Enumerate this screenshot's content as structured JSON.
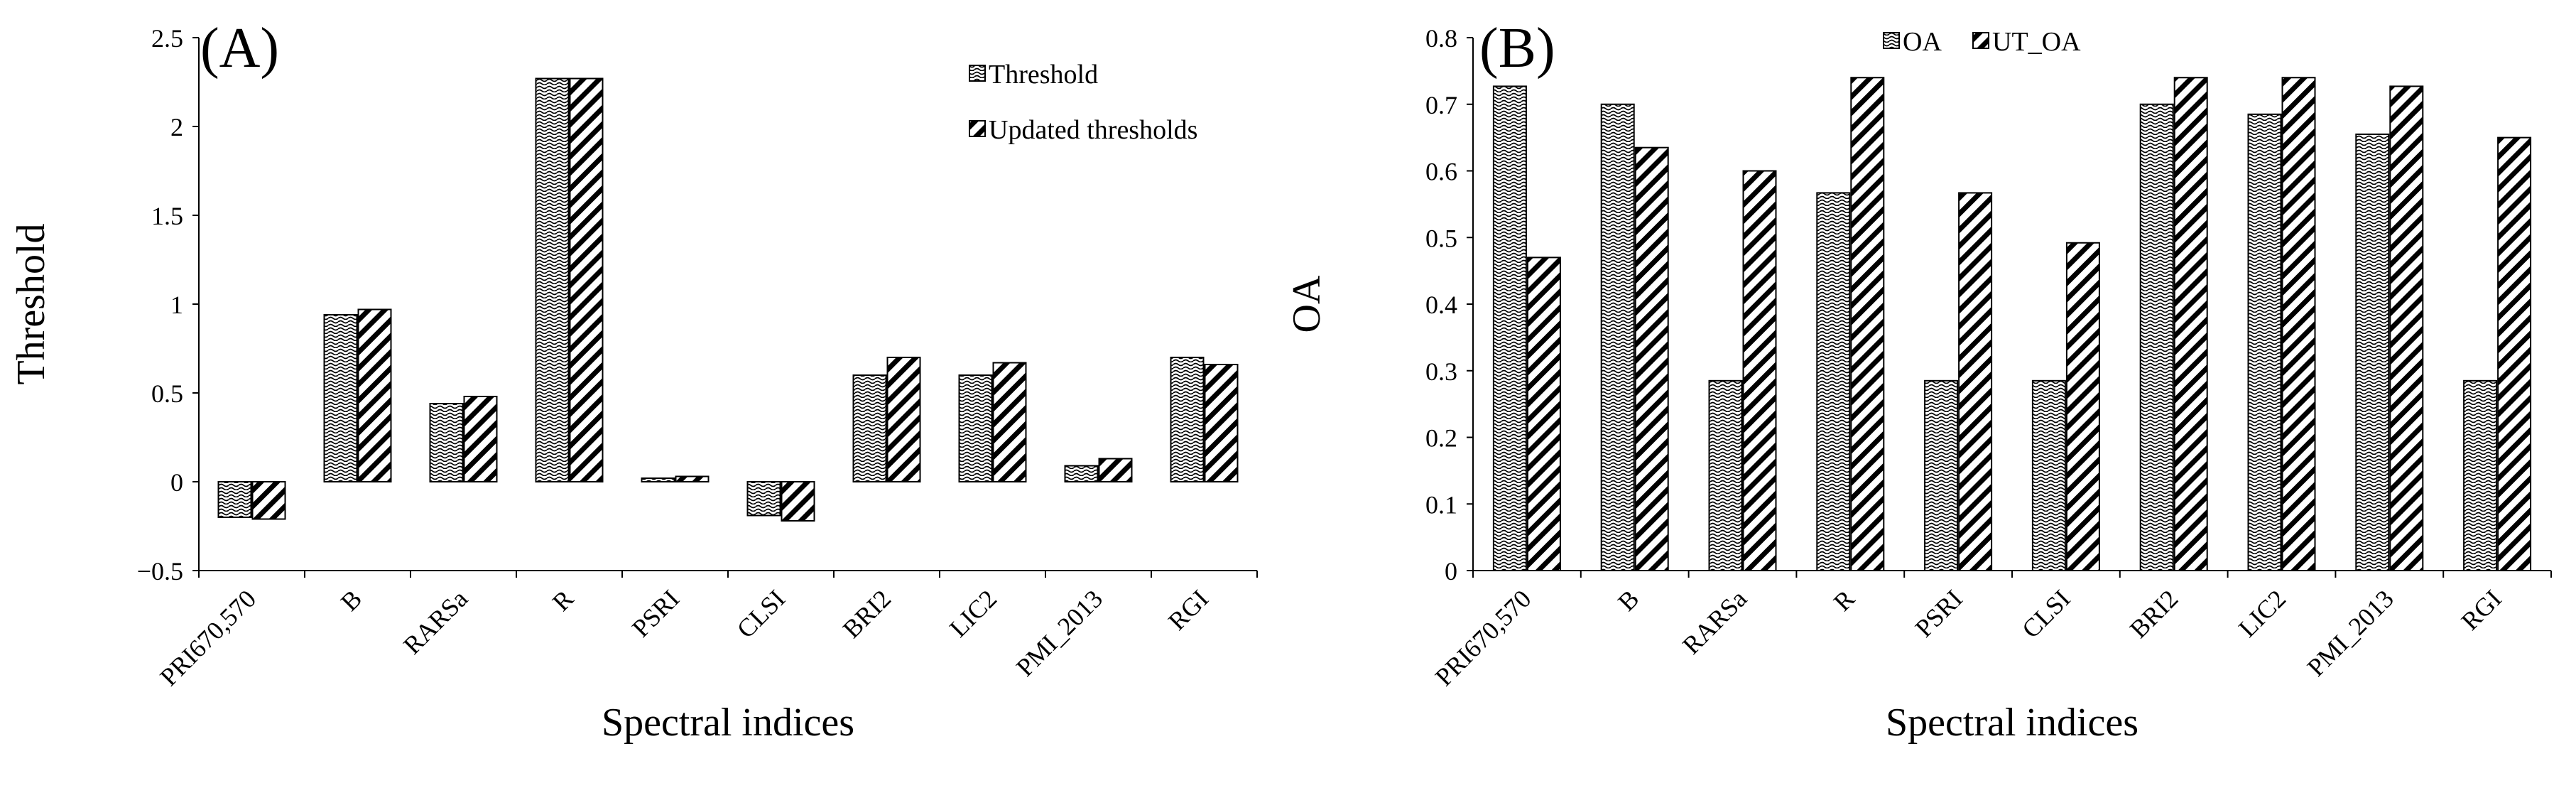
{
  "colors": {
    "ink": "#000000",
    "background": "#ffffff"
  },
  "chart_data": [
    {
      "type": "bar",
      "panel_label": "(A)",
      "xlabel": "Spectral indices",
      "ylabel": "Threshold",
      "ylim": [
        -0.5,
        2.5
      ],
      "yticks": [
        -0.5,
        0,
        0.5,
        1,
        1.5,
        2,
        2.5
      ],
      "ytick_labels": [
        "−0.5",
        "0",
        "0.5",
        "1",
        "1.5",
        "2",
        "2.5"
      ],
      "categories": [
        "PRI670,570",
        "B",
        "RARSa",
        "R",
        "PSRI",
        "CLSI",
        "BRI2",
        "LIC2",
        "PMI_2013",
        "RGI"
      ],
      "legend_position": "top-right",
      "legend_layout": "vertical",
      "series": [
        {
          "name": "Threshold",
          "pattern": "wavy",
          "values": [
            -0.2,
            0.94,
            0.44,
            2.27,
            0.02,
            -0.19,
            0.6,
            0.6,
            0.09,
            0.7
          ]
        },
        {
          "name": "Updated thresholds",
          "pattern": "diagonal",
          "values": [
            -0.21,
            0.97,
            0.48,
            2.27,
            0.03,
            -0.22,
            0.7,
            0.67,
            0.13,
            0.66
          ]
        }
      ]
    },
    {
      "type": "bar",
      "panel_label": "(B)",
      "xlabel": "Spectral indices",
      "ylabel": "OA",
      "ylim": [
        0,
        0.8
      ],
      "yticks": [
        0,
        0.1,
        0.2,
        0.3,
        0.4,
        0.5,
        0.6,
        0.7,
        0.8
      ],
      "ytick_labels": [
        "0",
        "0.1",
        "0.2",
        "0.3",
        "0.4",
        "0.5",
        "0.6",
        "0.7",
        "0.8"
      ],
      "categories": [
        "PRI670,570",
        "B",
        "RARSa",
        "R",
        "PSRI",
        "CLSI",
        "BRI2",
        "LIC2",
        "PMI_2013",
        "RGI"
      ],
      "legend_position": "top-center",
      "legend_layout": "horizontal",
      "series": [
        {
          "name": "OA",
          "pattern": "wavy",
          "values": [
            0.727,
            0.7,
            0.285,
            0.567,
            0.285,
            0.285,
            0.7,
            0.685,
            0.655,
            0.285
          ]
        },
        {
          "name": "UT_OA",
          "pattern": "diagonal",
          "values": [
            0.47,
            0.635,
            0.6,
            0.74,
            0.567,
            0.492,
            0.74,
            0.74,
            0.727,
            0.65
          ]
        }
      ]
    }
  ]
}
